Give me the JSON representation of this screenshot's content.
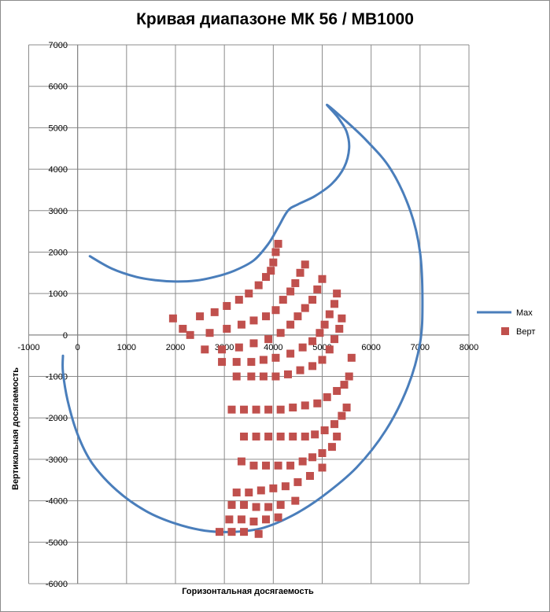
{
  "chart_data": {
    "type": "scatter",
    "title": "Кривая диапазоне МК 56 / МВ1000",
    "xlabel": "Горизонтальная досягаемость",
    "ylabel": "Вертикальная досягаемость",
    "xlim": [
      -1000,
      8000
    ],
    "ylim": [
      -6000,
      7000
    ],
    "x_ticks": [
      -1000,
      0,
      1000,
      2000,
      3000,
      4000,
      5000,
      6000,
      7000,
      8000
    ],
    "y_ticks": [
      -6000,
      -5000,
      -4000,
      -3000,
      -2000,
      -1000,
      0,
      1000,
      2000,
      3000,
      4000,
      5000,
      6000,
      7000
    ],
    "grid": true,
    "legend_position": "right",
    "series": [
      {
        "name": "Max",
        "kind": "line",
        "color": "#4a7ebb",
        "points": [
          [
            250,
            1900
          ],
          [
            700,
            1600
          ],
          [
            1200,
            1400
          ],
          [
            1600,
            1320
          ],
          [
            2000,
            1290
          ],
          [
            2400,
            1310
          ],
          [
            2800,
            1400
          ],
          [
            3200,
            1550
          ],
          [
            3600,
            1800
          ],
          [
            3900,
            2200
          ],
          [
            4100,
            2600
          ],
          [
            4300,
            3000
          ],
          [
            4500,
            3150
          ],
          [
            4850,
            3350
          ],
          [
            5200,
            3650
          ],
          [
            5450,
            4050
          ],
          [
            5550,
            4500
          ],
          [
            5500,
            4900
          ],
          [
            5350,
            5200
          ],
          [
            5250,
            5350
          ],
          [
            5100,
            5550
          ],
          [
            5400,
            5250
          ],
          [
            5900,
            4700
          ],
          [
            6400,
            4000
          ],
          [
            6800,
            3000
          ],
          [
            7000,
            2000
          ],
          [
            7050,
            800
          ],
          [
            7000,
            -200
          ],
          [
            6750,
            -1250
          ],
          [
            6300,
            -2300
          ],
          [
            5700,
            -3200
          ],
          [
            5000,
            -3900
          ],
          [
            4400,
            -4350
          ],
          [
            3800,
            -4650
          ],
          [
            3200,
            -4750
          ],
          [
            2600,
            -4720
          ],
          [
            2000,
            -4550
          ],
          [
            1400,
            -4250
          ],
          [
            800,
            -3750
          ],
          [
            300,
            -3100
          ],
          [
            0,
            -2400
          ],
          [
            -200,
            -1600
          ],
          [
            -300,
            -900
          ],
          [
            -300,
            -500
          ]
        ]
      },
      {
        "name": "Верт",
        "kind": "scatter",
        "color": "#c0504d",
        "points": [
          [
            4100,
            2200
          ],
          [
            4050,
            2000
          ],
          [
            4000,
            1750
          ],
          [
            3950,
            1550
          ],
          [
            3850,
            1400
          ],
          [
            3700,
            1200
          ],
          [
            3500,
            1000
          ],
          [
            3300,
            850
          ],
          [
            3050,
            700
          ],
          [
            2800,
            550
          ],
          [
            2500,
            450
          ],
          [
            1950,
            400
          ],
          [
            4650,
            1700
          ],
          [
            4550,
            1500
          ],
          [
            4450,
            1250
          ],
          [
            4350,
            1050
          ],
          [
            4200,
            850
          ],
          [
            4050,
            600
          ],
          [
            3850,
            450
          ],
          [
            3600,
            350
          ],
          [
            3350,
            250
          ],
          [
            3050,
            150
          ],
          [
            2700,
            50
          ],
          [
            2300,
            0
          ],
          [
            2150,
            150
          ],
          [
            5000,
            1350
          ],
          [
            4900,
            1100
          ],
          [
            4800,
            850
          ],
          [
            4650,
            650
          ],
          [
            4500,
            450
          ],
          [
            4350,
            250
          ],
          [
            4150,
            50
          ],
          [
            3900,
            -100
          ],
          [
            3600,
            -200
          ],
          [
            3300,
            -300
          ],
          [
            2950,
            -350
          ],
          [
            2600,
            -350
          ],
          [
            5300,
            1000
          ],
          [
            5250,
            750
          ],
          [
            5150,
            500
          ],
          [
            5050,
            250
          ],
          [
            4950,
            50
          ],
          [
            4800,
            -150
          ],
          [
            4600,
            -300
          ],
          [
            4350,
            -450
          ],
          [
            4050,
            -550
          ],
          [
            3800,
            -600
          ],
          [
            3550,
            -650
          ],
          [
            3250,
            -650
          ],
          [
            2950,
            -650
          ],
          [
            5400,
            400
          ],
          [
            5350,
            150
          ],
          [
            5250,
            -100
          ],
          [
            5150,
            -350
          ],
          [
            5000,
            -600
          ],
          [
            4800,
            -750
          ],
          [
            4550,
            -850
          ],
          [
            4300,
            -950
          ],
          [
            4050,
            -1000
          ],
          [
            3800,
            -1000
          ],
          [
            3550,
            -1000
          ],
          [
            3250,
            -1000
          ],
          [
            5600,
            -550
          ],
          [
            5550,
            -1000
          ],
          [
            5450,
            -1200
          ],
          [
            5300,
            -1350
          ],
          [
            5100,
            -1500
          ],
          [
            4900,
            -1650
          ],
          [
            4650,
            -1700
          ],
          [
            4400,
            -1750
          ],
          [
            4150,
            -1800
          ],
          [
            3900,
            -1800
          ],
          [
            3650,
            -1800
          ],
          [
            3400,
            -1800
          ],
          [
            3150,
            -1800
          ],
          [
            5500,
            -1750
          ],
          [
            5400,
            -1950
          ],
          [
            5250,
            -2150
          ],
          [
            5050,
            -2300
          ],
          [
            4850,
            -2400
          ],
          [
            4650,
            -2450
          ],
          [
            4400,
            -2450
          ],
          [
            4150,
            -2450
          ],
          [
            3900,
            -2450
          ],
          [
            3650,
            -2450
          ],
          [
            3400,
            -2450
          ],
          [
            5300,
            -2450
          ],
          [
            5200,
            -2700
          ],
          [
            5000,
            -2850
          ],
          [
            4800,
            -2950
          ],
          [
            4600,
            -3050
          ],
          [
            4350,
            -3150
          ],
          [
            4100,
            -3150
          ],
          [
            3850,
            -3150
          ],
          [
            3600,
            -3150
          ],
          [
            3350,
            -3050
          ],
          [
            5000,
            -3200
          ],
          [
            4750,
            -3400
          ],
          [
            4500,
            -3550
          ],
          [
            4250,
            -3650
          ],
          [
            4000,
            -3700
          ],
          [
            3750,
            -3750
          ],
          [
            3500,
            -3800
          ],
          [
            3250,
            -3800
          ],
          [
            4450,
            -4000
          ],
          [
            4150,
            -4100
          ],
          [
            3900,
            -4150
          ],
          [
            3650,
            -4150
          ],
          [
            3400,
            -4100
          ],
          [
            3150,
            -4100
          ],
          [
            4100,
            -4400
          ],
          [
            3850,
            -4450
          ],
          [
            3600,
            -4500
          ],
          [
            3350,
            -4450
          ],
          [
            3100,
            -4450
          ],
          [
            2900,
            -4750
          ],
          [
            3150,
            -4750
          ],
          [
            3400,
            -4750
          ],
          [
            3700,
            -4800
          ]
        ]
      }
    ]
  }
}
